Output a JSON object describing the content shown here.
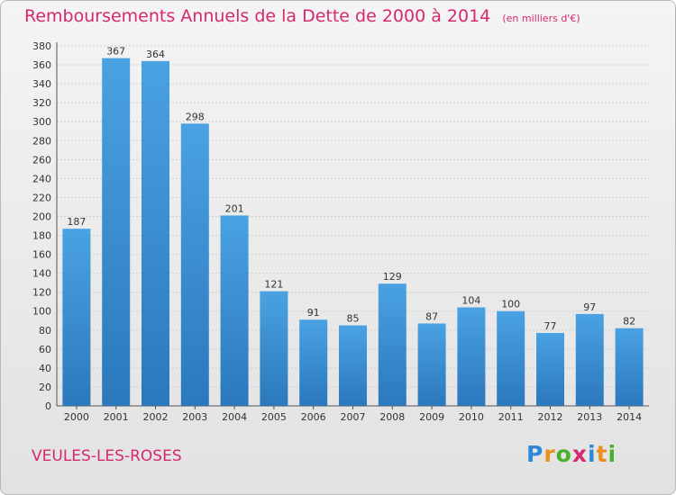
{
  "header": {
    "title": "Remboursements Annuels de la Dette de 2000 à 2014",
    "subtitle": "(en milliers d'€)"
  },
  "footer": {
    "city": "VEULES-LES-ROSES",
    "logo_letters": [
      "P",
      "r",
      "o",
      "x",
      "i",
      "t",
      "i"
    ],
    "logo_colors": [
      "#2e8ad8",
      "#e8901c",
      "#48b02c",
      "#d6286f",
      "#2e8ad8",
      "#e8901c",
      "#48b02c"
    ]
  },
  "chart_data": {
    "type": "bar",
    "categories": [
      "2000",
      "2001",
      "2002",
      "2003",
      "2004",
      "2005",
      "2006",
      "2007",
      "2008",
      "2009",
      "2010",
      "2011",
      "2012",
      "2013",
      "2014"
    ],
    "values": [
      187,
      367,
      364,
      298,
      201,
      121,
      91,
      85,
      129,
      87,
      104,
      100,
      77,
      97,
      82
    ],
    "ylim": [
      0,
      380
    ],
    "ytick_step": 20,
    "grid": true,
    "bar_color": "#4aa2e2",
    "bar_color_dark": "#2b78bd"
  }
}
